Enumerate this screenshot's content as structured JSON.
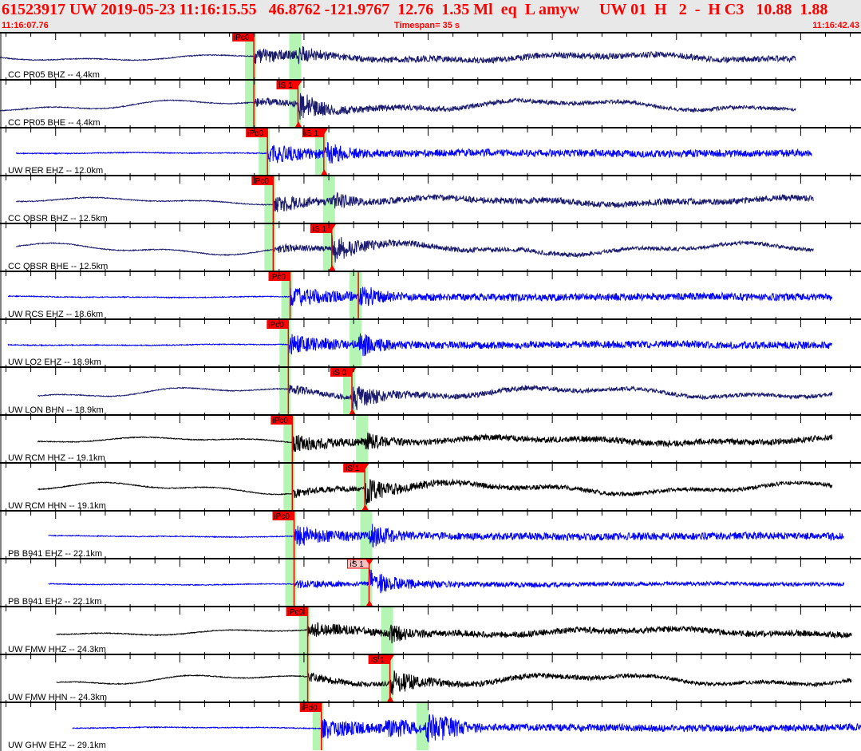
{
  "header": {
    "title": "61523917 UW 2019-05-23 11:16:15.55   46.8762 -121.9767  12.76  1.35 Ml  eq  L amyw     UW 01  H   2  -  H C3   10.88  1.88",
    "start_time": "11:16:07.76",
    "timespan": "Timespan=  35 s",
    "end_time": "11:16:42.43"
  },
  "colors": {
    "header_bg": "#e8e8e8",
    "header_text": "#ff0000",
    "pick": "#ff0000",
    "pick_soft": "#f4c4c4",
    "window": "#b4f5b4",
    "navy": "#1a1a6e",
    "blue": "#0000ff",
    "black": "#000000"
  },
  "traces": [
    {
      "label": "CC PR05 BHZ -- 4.4km",
      "color": "navy",
      "start": "11:16:07.76",
      "end": "11:16:39.81",
      "p": "11:16:17.98",
      "s": "11:16:19.76",
      "p_label": "iPc0",
      "s_label": null
    },
    {
      "label": "CC PR05 BHE -- 4.4km",
      "color": "navy",
      "start": "11:16:07.76",
      "end": "11:16:39.81",
      "p": "11:16:17.98",
      "s": "11:16:19.76",
      "p_label": null,
      "s_label": "iS 1"
    },
    {
      "label": "UW RER EHZ -- 12.0km",
      "color": "blue",
      "start": "11:16:08.41",
      "end": "11:16:40.46",
      "p": "11:16:18.53",
      "s": "11:16:20.80",
      "p_label": "iPd0",
      "s_label": "iS 1"
    },
    {
      "label": "CC QBSR BHZ -- 12.5km",
      "color": "navy",
      "start": "11:16:08.41",
      "end": "11:16:40.52",
      "p": "11:16:18.76",
      "s": "11:16:21.12",
      "p_label": "iPc0",
      "s_label": null
    },
    {
      "label": "CC QBSR BHE -- 12.5km",
      "color": "navy",
      "start": "11:16:08.41",
      "end": "11:16:40.52",
      "p": "11:16:18.76",
      "s": "11:16:21.12",
      "p_label": null,
      "s_label": "iS 1"
    },
    {
      "label": "UW RCS EHZ -- 18.6km",
      "color": "blue",
      "start": "11:16:08.08",
      "end": "11:16:41.27",
      "p": "11:16:19.44",
      "s": "11:16:22.19",
      "p_label": "iPc0",
      "s_label": null
    },
    {
      "label": "UW LO2 EHZ -- 18.9km",
      "color": "blue",
      "start": "11:16:08.08",
      "end": "11:16:41.27",
      "p": "11:16:19.37",
      "s": "11:16:22.19",
      "p_label": "iPc0",
      "s_label": null
    },
    {
      "label": "UW LON BHN -- 18.9km",
      "color": "navy",
      "start": "11:16:09.28",
      "end": "11:16:41.27",
      "p": "11:16:19.37",
      "s": "11:16:21.93",
      "p_label": null,
      "s_label": "iS 0"
    },
    {
      "label": "UW RCM HHZ -- 19.1km",
      "color": "black",
      "start": "11:16:09.28",
      "end": "11:16:41.27",
      "p": "11:16:19.53",
      "s": "11:16:22.45",
      "p_label": "iPc0",
      "s_label": null
    },
    {
      "label": "UW RCM HHN -- 19.1km",
      "color": "black",
      "start": "11:16:09.28",
      "end": "11:16:41.27",
      "p": "11:16:19.53",
      "s": "11:16:22.45",
      "p_label": null,
      "s_label": "iS 1"
    },
    {
      "label": "PB B941 EHZ -- 22.1km",
      "color": "blue",
      "start": "11:16:09.71",
      "end": "11:16:41.75",
      "p": "11:16:19.60",
      "s": "11:16:22.62",
      "p_label": "iPc0",
      "s_label": null
    },
    {
      "label": "PB B941 EH2 -- 22.1km",
      "color": "blue",
      "start": "11:16:09.71",
      "end": "11:16:41.75",
      "p": "11:16:19.60",
      "s": "11:16:22.62",
      "p_label": null,
      "s_label": "iS 1",
      "s_soft": true
    },
    {
      "label": "UW FMW HHZ -- 24.3km",
      "color": "black",
      "start": "11:16:10.03",
      "end": "11:16:42.05",
      "p": "11:16:20.15",
      "s": "11:16:23.46",
      "p_label": "iPc0",
      "s_label": null
    },
    {
      "label": "UW FMW HHN -- 24.3km",
      "color": "black",
      "start": "11:16:10.03",
      "end": "11:16:42.05",
      "p": "11:16:20.15",
      "s": "11:16:23.46",
      "p_label": null,
      "s_label": "iS 1"
    },
    {
      "label": "UW GHW EHZ -- 29.1km",
      "color": "blue",
      "start": "11:16:10.68",
      "end": "11:16:42.43",
      "p": "11:16:20.70",
      "s": "11:16:24.89",
      "p_label": "iPd0",
      "s_label": null
    }
  ]
}
